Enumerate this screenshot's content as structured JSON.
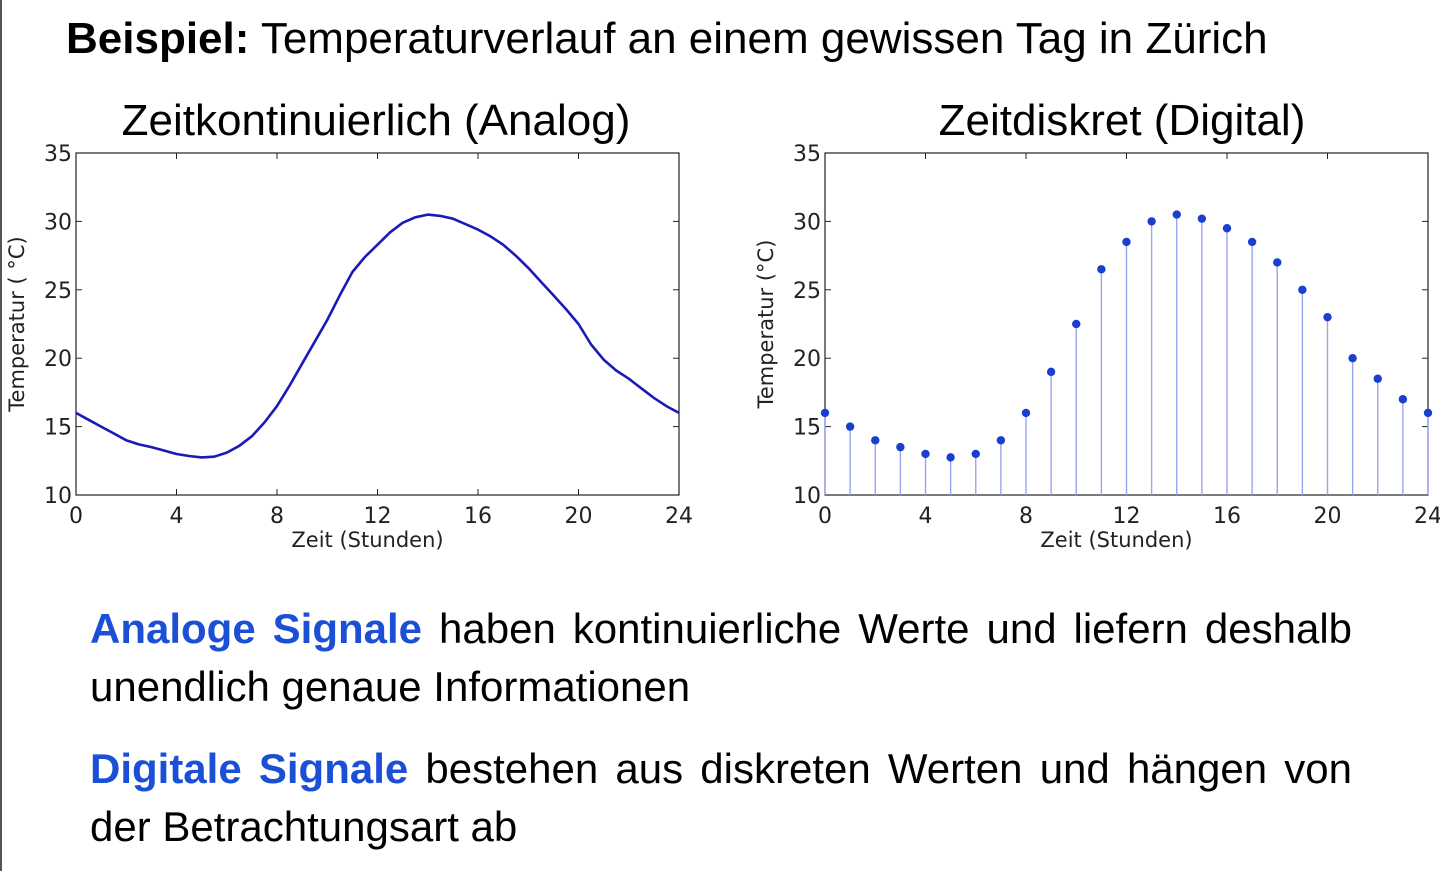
{
  "slide": {
    "title_bold": "Beispiel:",
    "title_rest": " Temperaturverlauf an einem gewissen Tag in Zürich"
  },
  "paragraphs": [
    {
      "keyword": "Analoge Signale",
      "text": " haben kontinuierliche Werte und liefern deshalb unendlich genaue Informationen"
    },
    {
      "keyword": "Digitale Signale",
      "text": " bestehen aus diskreten Werten und hängen von der Betrachtungsart ab"
    }
  ],
  "colors": {
    "line": "#1a1ab8",
    "stem": "#9aa4ee",
    "marker": "#1a3fd0",
    "keyword": "#1a4fd6"
  },
  "chart_data": [
    {
      "type": "line",
      "title": "Zeitkontinuierlich (Analog)",
      "xlabel": "Zeit (Stunden)",
      "ylabel": "Temperatur ( °C)",
      "xlim": [
        0,
        24
      ],
      "ylim": [
        10,
        35
      ],
      "xticks": [
        0,
        4,
        8,
        12,
        16,
        20,
        24
      ],
      "yticks": [
        10,
        15,
        20,
        25,
        30,
        35
      ],
      "x": [
        0,
        0.5,
        1,
        1.5,
        2,
        2.5,
        3,
        3.5,
        4,
        4.5,
        5,
        5.5,
        6,
        6.5,
        7,
        7.5,
        8,
        8.5,
        9,
        9.5,
        10,
        10.5,
        11,
        11.5,
        12,
        12.5,
        13,
        13.5,
        14,
        14.5,
        15,
        15.5,
        16,
        16.5,
        17,
        17.5,
        18,
        18.5,
        19,
        19.5,
        20,
        20.5,
        21,
        21.5,
        22,
        22.5,
        23,
        23.5,
        24
      ],
      "y": [
        16,
        15.5,
        15,
        14.5,
        14,
        13.7,
        13.5,
        13.25,
        13,
        12.85,
        12.75,
        12.8,
        13.1,
        13.6,
        14.3,
        15.3,
        16.5,
        18,
        19.6,
        21.2,
        22.8,
        24.6,
        26.3,
        27.4,
        28.3,
        29.2,
        29.9,
        30.3,
        30.5,
        30.4,
        30.2,
        29.8,
        29.4,
        28.9,
        28.3,
        27.5,
        26.6,
        25.6,
        24.6,
        23.6,
        22.5,
        21,
        19.9,
        19.1,
        18.5,
        17.8,
        17.1,
        16.5,
        16
      ]
    },
    {
      "type": "scatter",
      "title": "Zeitdiskret (Digital)",
      "xlabel": "Zeit (Stunden)",
      "ylabel": "Temperatur (°C)",
      "xlim": [
        0,
        24
      ],
      "ylim": [
        10,
        35
      ],
      "xticks": [
        0,
        4,
        8,
        12,
        16,
        20,
        24
      ],
      "yticks": [
        10,
        15,
        20,
        25,
        30,
        35
      ],
      "x": [
        0,
        1,
        2,
        3,
        4,
        5,
        6,
        7,
        8,
        9,
        10,
        11,
        12,
        13,
        14,
        15,
        16,
        17,
        18,
        19,
        20,
        21,
        22,
        23,
        24
      ],
      "y": [
        16,
        15,
        14,
        13.5,
        13,
        12.75,
        13,
        14,
        16,
        19,
        22.5,
        26.5,
        28.5,
        30,
        30.5,
        30.2,
        29.5,
        28.5,
        27,
        25,
        23,
        20,
        18.5,
        17,
        16
      ]
    }
  ]
}
